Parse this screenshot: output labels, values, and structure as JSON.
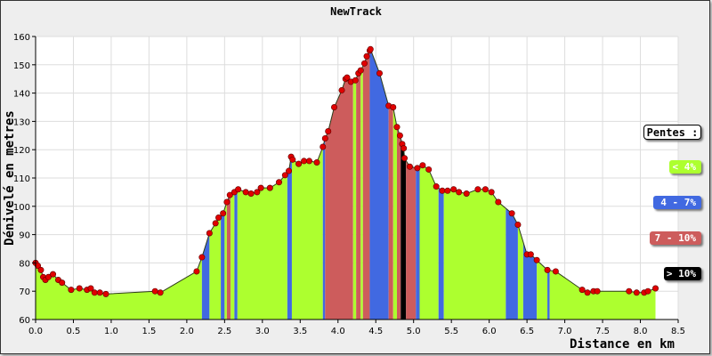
{
  "chart_data": {
    "type": "area",
    "title": "NewTrack",
    "xlabel": "Distance en km",
    "ylabel": "Dénivelé en metres",
    "xlim": [
      0.0,
      8.5
    ],
    "ylim": [
      60,
      160
    ],
    "x_ticks": [
      "0.0",
      "0.5",
      "1.0",
      "1.5",
      "2.0",
      "2.5",
      "3.0",
      "3.5",
      "4.0",
      "4.5",
      "5.0",
      "5.5",
      "6.0",
      "6.5",
      "7.0",
      "7.5",
      "8.0",
      "8.5"
    ],
    "y_ticks": [
      "60",
      "70",
      "80",
      "90",
      "100",
      "110",
      "120",
      "130",
      "140",
      "150",
      "160"
    ],
    "grid": true,
    "legend": {
      "title": "Pentes :",
      "placement": "right",
      "items": [
        {
          "label": "< 4%",
          "color": "#adff2f",
          "text_color": "#ffffff"
        },
        {
          "label": "4 - 7%",
          "color": "#4169e1",
          "text_color": "#ffffff"
        },
        {
          "label": "7 - 10%",
          "color": "#cd5c5c",
          "text_color": "#ffffff"
        },
        {
          "label": "> 10%",
          "color": "#000000",
          "text_color": "#ffffff"
        }
      ]
    },
    "points": [
      [
        0.0,
        80
      ],
      [
        0.03,
        79
      ],
      [
        0.07,
        77.5
      ],
      [
        0.1,
        75
      ],
      [
        0.13,
        74
      ],
      [
        0.17,
        75
      ],
      [
        0.23,
        76
      ],
      [
        0.3,
        74
      ],
      [
        0.35,
        73
      ],
      [
        0.47,
        70.5
      ],
      [
        0.58,
        71
      ],
      [
        0.68,
        70.5
      ],
      [
        0.73,
        71
      ],
      [
        0.78,
        69.5
      ],
      [
        0.85,
        69.5
      ],
      [
        0.93,
        69
      ],
      [
        1.58,
        70
      ],
      [
        1.65,
        69.5
      ],
      [
        2.13,
        77
      ],
      [
        2.2,
        82
      ],
      [
        2.3,
        90.5
      ],
      [
        2.38,
        94
      ],
      [
        2.42,
        96
      ],
      [
        2.48,
        97.5
      ],
      [
        2.53,
        101.5
      ],
      [
        2.57,
        104
      ],
      [
        2.63,
        105
      ],
      [
        2.68,
        106
      ],
      [
        2.78,
        105
      ],
      [
        2.85,
        104.5
      ],
      [
        2.93,
        105
      ],
      [
        2.98,
        106.5
      ],
      [
        3.1,
        106.5
      ],
      [
        3.22,
        108.5
      ],
      [
        3.3,
        111
      ],
      [
        3.35,
        112.5
      ],
      [
        3.38,
        117.5
      ],
      [
        3.4,
        116.5
      ],
      [
        3.48,
        115
      ],
      [
        3.55,
        116
      ],
      [
        3.62,
        116
      ],
      [
        3.72,
        115.5
      ],
      [
        3.8,
        121
      ],
      [
        3.83,
        124
      ],
      [
        3.87,
        126.5
      ],
      [
        3.95,
        135
      ],
      [
        4.05,
        141
      ],
      [
        4.1,
        145
      ],
      [
        4.12,
        145.5
      ],
      [
        4.17,
        144
      ],
      [
        4.23,
        144.5
      ],
      [
        4.27,
        147
      ],
      [
        4.3,
        148
      ],
      [
        4.35,
        150.5
      ],
      [
        4.38,
        153
      ],
      [
        4.42,
        155
      ],
      [
        4.43,
        155.5
      ],
      [
        4.55,
        147
      ],
      [
        4.67,
        135.5
      ],
      [
        4.73,
        135
      ],
      [
        4.78,
        128
      ],
      [
        4.82,
        125
      ],
      [
        4.85,
        122
      ],
      [
        4.87,
        120.5
      ],
      [
        4.88,
        117
      ],
      [
        4.95,
        114
      ],
      [
        5.05,
        113.5
      ],
      [
        5.12,
        114.5
      ],
      [
        5.2,
        113
      ],
      [
        5.3,
        107
      ],
      [
        5.38,
        105.5
      ],
      [
        5.45,
        105.5
      ],
      [
        5.53,
        106
      ],
      [
        5.6,
        105
      ],
      [
        5.7,
        104.5
      ],
      [
        5.85,
        106
      ],
      [
        5.95,
        106
      ],
      [
        6.03,
        105
      ],
      [
        6.12,
        101.5
      ],
      [
        6.3,
        97.5
      ],
      [
        6.38,
        93.5
      ],
      [
        6.5,
        83
      ],
      [
        6.55,
        83
      ],
      [
        6.63,
        81
      ],
      [
        6.77,
        77.5
      ],
      [
        6.88,
        77
      ],
      [
        7.23,
        70.5
      ],
      [
        7.3,
        69.5
      ],
      [
        7.38,
        70
      ],
      [
        7.43,
        70
      ],
      [
        7.85,
        70
      ],
      [
        7.95,
        69.5
      ],
      [
        8.05,
        69.5
      ],
      [
        8.1,
        70
      ],
      [
        8.2,
        71
      ]
    ],
    "slope_segments": [
      {
        "x0": 0.0,
        "x1": 2.2,
        "class": "< 4%"
      },
      {
        "x0": 2.2,
        "x1": 2.3,
        "class": "4 - 7%"
      },
      {
        "x0": 2.3,
        "x1": 2.45,
        "class": "< 4%"
      },
      {
        "x0": 2.45,
        "x1": 2.5,
        "class": "4 - 7%"
      },
      {
        "x0": 2.5,
        "x1": 2.53,
        "class": "< 4%"
      },
      {
        "x0": 2.53,
        "x1": 2.58,
        "class": "7 - 10%"
      },
      {
        "x0": 2.58,
        "x1": 2.63,
        "class": "< 4%"
      },
      {
        "x0": 2.63,
        "x1": 2.67,
        "class": "4 - 7%"
      },
      {
        "x0": 2.67,
        "x1": 3.33,
        "class": "< 4%"
      },
      {
        "x0": 3.33,
        "x1": 3.39,
        "class": "4 - 7%"
      },
      {
        "x0": 3.39,
        "x1": 3.8,
        "class": "< 4%"
      },
      {
        "x0": 3.8,
        "x1": 3.83,
        "class": "4 - 7%"
      },
      {
        "x0": 3.83,
        "x1": 4.2,
        "class": "7 - 10%"
      },
      {
        "x0": 4.2,
        "x1": 4.24,
        "class": "< 4%"
      },
      {
        "x0": 4.24,
        "x1": 4.3,
        "class": "7 - 10%"
      },
      {
        "x0": 4.3,
        "x1": 4.33,
        "class": "< 4%"
      },
      {
        "x0": 4.33,
        "x1": 4.42,
        "class": "7 - 10%"
      },
      {
        "x0": 4.42,
        "x1": 4.67,
        "class": "4 - 7%"
      },
      {
        "x0": 4.67,
        "x1": 4.73,
        "class": "7 - 10%"
      },
      {
        "x0": 4.73,
        "x1": 4.78,
        "class": "< 4%"
      },
      {
        "x0": 4.78,
        "x1": 4.83,
        "class": "7 - 10%"
      },
      {
        "x0": 4.83,
        "x1": 4.9,
        "class": "> 10%"
      },
      {
        "x0": 4.9,
        "x1": 5.03,
        "class": "7 - 10%"
      },
      {
        "x0": 5.03,
        "x1": 5.08,
        "class": "4 - 7%"
      },
      {
        "x0": 5.08,
        "x1": 5.33,
        "class": "< 4%"
      },
      {
        "x0": 5.33,
        "x1": 5.4,
        "class": "4 - 7%"
      },
      {
        "x0": 5.4,
        "x1": 6.22,
        "class": "< 4%"
      },
      {
        "x0": 6.22,
        "x1": 6.38,
        "class": "4 - 7%"
      },
      {
        "x0": 6.38,
        "x1": 6.45,
        "class": "< 4%"
      },
      {
        "x0": 6.45,
        "x1": 6.63,
        "class": "4 - 7%"
      },
      {
        "x0": 6.63,
        "x1": 6.77,
        "class": "< 4%"
      },
      {
        "x0": 6.77,
        "x1": 6.8,
        "class": "4 - 7%"
      },
      {
        "x0": 6.8,
        "x1": 8.2,
        "class": "< 4%"
      }
    ]
  }
}
